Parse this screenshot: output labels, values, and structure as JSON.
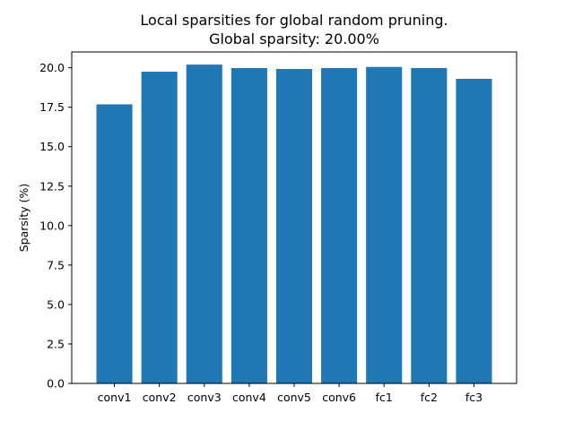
{
  "chart_data": {
    "type": "bar",
    "title": "Local sparsities for global random pruning.",
    "subtitle": "Global sparsity: 20.00%",
    "xlabel": "",
    "ylabel": "Sparsity (%)",
    "categories": [
      "conv1",
      "conv2",
      "conv3",
      "conv4",
      "conv5",
      "conv6",
      "fc1",
      "fc2",
      "fc3"
    ],
    "values": [
      17.68,
      19.75,
      20.2,
      19.98,
      19.92,
      19.98,
      20.05,
      19.98,
      19.3
    ],
    "ylim": [
      0,
      21.0
    ],
    "yticks": [
      "0.0",
      "2.5",
      "5.0",
      "7.5",
      "10.0",
      "12.5",
      "15.0",
      "17.5",
      "20.0"
    ],
    "bar_color": "#1f77b4",
    "grid": false,
    "legend": "none"
  }
}
